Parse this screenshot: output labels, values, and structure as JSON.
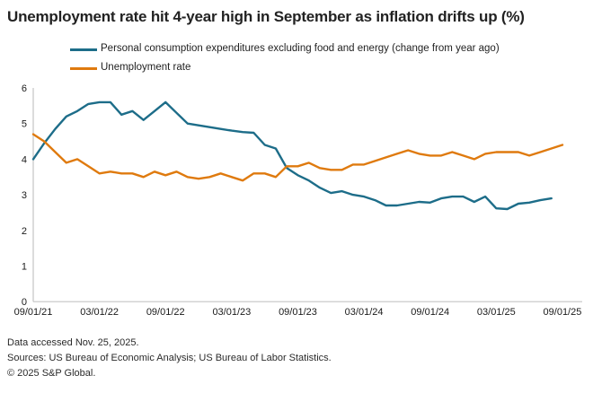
{
  "title": "Unemployment rate hit 4-year high in September as inflation drifts up (%)",
  "colors": {
    "pce": "#1d6d89",
    "unemployment": "#df7a0e",
    "axis": "#c4c4c4",
    "tick_text": "#1a1a1a"
  },
  "footer": {
    "lines": [
      "Data accessed Nov. 25, 2025.",
      "Sources: US Bureau of Economic Analysis; US Bureau of Labor Statistics.",
      "© 2025 S&P Global."
    ]
  },
  "chart_data": {
    "type": "line",
    "title": "Unemployment rate hit 4-year high in September as inflation drifts up (%)",
    "x_unit": "month",
    "x_start_label": "09/01/21",
    "x_tick_labels": [
      "09/01/21",
      "03/01/22",
      "09/01/22",
      "03/01/23",
      "09/01/23",
      "03/01/24",
      "09/01/24",
      "03/01/25",
      "09/01/25"
    ],
    "x_tick_positions_months": [
      0,
      6,
      12,
      18,
      24,
      30,
      36,
      42,
      48
    ],
    "x_range_months": [
      0,
      48
    ],
    "ylim": [
      0,
      6
    ],
    "y_ticks": [
      0,
      1,
      2,
      3,
      4,
      5,
      6
    ],
    "grid": false,
    "legend_position": "top-left",
    "series": [
      {
        "name": "Personal consumption expenditures excluding food and energy (change from year ago)",
        "color_key": "pce",
        "start_month": 0,
        "values": [
          4.0,
          4.45,
          4.85,
          5.2,
          5.35,
          5.55,
          5.6,
          5.6,
          5.25,
          5.35,
          5.1,
          5.35,
          5.6,
          5.3,
          5.0,
          4.95,
          4.9,
          4.85,
          4.8,
          4.76,
          4.74,
          4.4,
          4.3,
          3.75,
          3.55,
          3.4,
          3.2,
          3.05,
          3.1,
          3.0,
          2.95,
          2.85,
          2.7,
          2.7,
          2.75,
          2.8,
          2.78,
          2.9,
          2.95,
          2.95,
          2.8,
          2.95,
          2.62,
          2.6,
          2.75,
          2.78,
          2.85,
          2.9
        ]
      },
      {
        "name": "Unemployment rate",
        "color_key": "unemployment",
        "start_month": 0,
        "values": [
          4.7,
          4.5,
          4.2,
          3.9,
          4.0,
          3.8,
          3.6,
          3.65,
          3.6,
          3.6,
          3.5,
          3.65,
          3.55,
          3.65,
          3.5,
          3.45,
          3.5,
          3.6,
          3.5,
          3.4,
          3.6,
          3.6,
          3.5,
          3.8,
          3.8,
          3.9,
          3.75,
          3.7,
          3.7,
          3.85,
          3.85,
          3.95,
          4.05,
          4.15,
          4.25,
          4.15,
          4.1,
          4.1,
          4.2,
          4.1,
          4.0,
          4.15,
          4.2,
          4.2,
          4.2,
          4.1,
          4.2,
          4.3,
          4.4
        ]
      }
    ]
  }
}
